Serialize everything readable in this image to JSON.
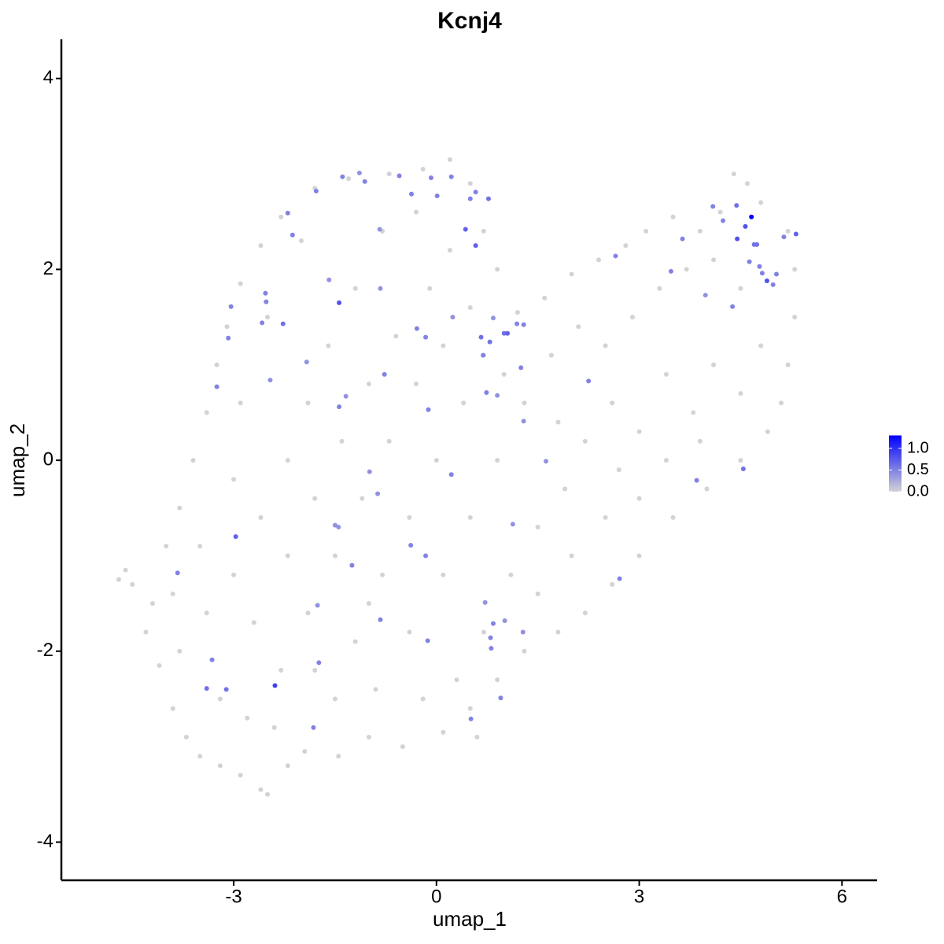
{
  "chart_data": {
    "type": "scatter",
    "title": "Kcnj4",
    "x_label": "umap_1",
    "y_label": "umap_2",
    "xlim": [
      -5.55,
      6.52
    ],
    "ylim": [
      -4.4,
      4.41
    ],
    "xticks": [
      -3,
      0,
      3,
      6
    ],
    "yticks": [
      -4,
      -2,
      0,
      2,
      4
    ],
    "low_color": "#d3d3d3",
    "high_color": "#0000ff",
    "colorbar_lim": [
      0,
      1.3
    ],
    "colorbar_ticks": [
      {
        "value": 0,
        "label": "0.0"
      },
      {
        "value": 0.5,
        "label": "0.5"
      },
      {
        "value": 1,
        "label": "1.0"
      }
    ],
    "x": [
      -4.7,
      -4.5,
      -4.6,
      -4.3,
      -4.1,
      -3.9,
      -3.7,
      -3.5,
      -3.2,
      -2.9,
      -2.6,
      -2.5,
      -2.2,
      -1.95,
      -1.45,
      -1.0,
      -0.5,
      0.1,
      0.5,
      0.9,
      1.3,
      1.8,
      2.2,
      2.6,
      3.0,
      3.5,
      4.0,
      4.5,
      4.9,
      5.1,
      5.2,
      5.3,
      5.3,
      5.2,
      4.8,
      4.6,
      4.4,
      4.2,
      3.9,
      3.5,
      3.1,
      2.8,
      2.4,
      2.0,
      1.6,
      1.2,
      0.9,
      0.7,
      0.5,
      0.2,
      -0.2,
      -0.7,
      -1.3,
      -1.8,
      -2.3,
      -2.6,
      -2.9,
      -3.1,
      -3.25,
      -3.4,
      -3.6,
      -3.8,
      -4.0,
      -4.2,
      -3.8,
      -3.4,
      -3.0,
      -2.6,
      -2.2,
      -1.9,
      -1.6,
      -1.2,
      -0.8,
      -0.3,
      0.2,
      0.5,
      -0.1,
      -0.6,
      -1.0,
      -1.4,
      -1.8,
      -2.2,
      -2.7,
      -3.2,
      -2.8,
      -2.3,
      -1.9,
      -1.5,
      -1.1,
      -0.7,
      -0.3,
      0.1,
      0.4,
      0.0,
      -0.4,
      -0.8,
      -1.2,
      -1.5,
      -0.9,
      -0.4,
      0.1,
      0.5,
      0.9,
      1.3,
      1.7,
      2.1,
      2.5,
      2.9,
      3.3,
      3.7,
      4.1,
      4.5,
      4.8,
      4.5,
      4.1,
      3.8,
      3.4,
      3.0,
      2.6,
      2.2,
      1.9,
      1.5,
      1.1,
      0.7,
      0.3,
      1.5,
      2.0,
      2.5,
      3.0,
      3.4,
      3.9,
      2.7,
      1.8,
      1.0,
      0.7,
      -2.0,
      -2.5,
      -2.9,
      -3.0,
      -3.5,
      -3.9,
      -2.4,
      -1.8,
      -1.0,
      -0.2,
      0.6,
      -3.04,
      -3.08,
      -3.25,
      -2.97,
      -3.83,
      -3.32,
      -3.4,
      -3.11,
      -2.39,
      -2.53,
      -2.52,
      -2.58,
      -2.27,
      -2.2,
      -2.13,
      -2.46,
      -1.92,
      -1.78,
      -1.59,
      -1.44,
      -1.39,
      -1.14,
      -1.06,
      -0.55,
      -0.37,
      -0.08,
      0.22,
      0.01,
      0.5,
      0.58,
      0.77,
      0.43,
      0.58,
      -0.84,
      -0.83,
      -0.29,
      -0.16,
      0.24,
      0.66,
      0.79,
      0.84,
      1.0,
      1.05,
      1.19,
      1.29,
      0.69,
      1.25,
      0.74,
      0.9,
      1.29,
      -1.34,
      -1.44,
      -0.77,
      -0.12,
      -0.99,
      -0.87,
      0.22,
      1.62,
      -1.5,
      -1.45,
      -1.25,
      -0.38,
      -0.16,
      1.13,
      -1.76,
      -0.83,
      -1.74,
      -1.82,
      -0.13,
      0.72,
      0.84,
      0.8,
      0.81,
      1.01,
      1.28,
      0.95,
      0.51,
      2.71,
      2.25,
      2.65,
      3.47,
      3.64,
      3.85,
      3.98,
      4.09,
      4.24,
      4.38,
      4.44,
      4.45,
      4.54,
      4.57,
      4.63,
      4.7,
      4.74,
      4.78,
      4.82,
      4.89,
      4.98,
      5.03,
      5.14,
      5.32,
      4.66
    ],
    "y": [
      -1.25,
      -1.3,
      -1.15,
      -1.8,
      -2.15,
      -2.6,
      -2.9,
      -3.1,
      -3.2,
      -3.3,
      -3.45,
      -3.5,
      -3.2,
      -3.05,
      -3.1,
      -2.9,
      -3.0,
      -2.85,
      -2.6,
      -2.3,
      -2.0,
      -1.8,
      -1.6,
      -1.3,
      -1.0,
      -0.6,
      -0.3,
      0.0,
      0.3,
      0.6,
      1.0,
      1.5,
      2.0,
      2.4,
      2.7,
      2.9,
      3.0,
      2.6,
      2.4,
      2.55,
      2.4,
      2.25,
      2.1,
      1.95,
      1.7,
      1.55,
      2.0,
      2.4,
      2.9,
      3.15,
      3.05,
      3.0,
      2.95,
      2.85,
      2.55,
      2.25,
      1.85,
      1.4,
      1.0,
      0.5,
      0.0,
      -0.5,
      -0.9,
      -1.5,
      -2.0,
      -1.6,
      -1.2,
      -0.6,
      0.0,
      0.6,
      1.2,
      1.8,
      2.4,
      2.6,
      2.2,
      1.6,
      1.8,
      1.3,
      0.8,
      0.2,
      -0.4,
      -1.0,
      -1.7,
      -2.5,
      -2.7,
      -2.2,
      -1.6,
      -1.0,
      -0.4,
      0.2,
      0.8,
      1.2,
      0.6,
      0.0,
      -0.6,
      -1.2,
      -1.9,
      -2.5,
      -2.4,
      -1.8,
      -1.2,
      -0.6,
      0.0,
      0.6,
      1.1,
      1.4,
      1.2,
      1.5,
      1.8,
      2.0,
      2.1,
      1.8,
      1.2,
      0.7,
      1.0,
      0.5,
      0.9,
      0.3,
      0.6,
      0.2,
      -0.3,
      -0.7,
      -1.2,
      -1.8,
      -2.3,
      -1.4,
      -1.0,
      -0.6,
      -0.4,
      0.0,
      0.2,
      -0.1,
      0.4,
      0.9,
      1.1,
      2.3,
      1.5,
      0.6,
      -0.2,
      -0.9,
      -1.4,
      -2.8,
      -2.2,
      -1.5,
      -2.5,
      -2.9,
      1.61,
      1.28,
      0.77,
      -0.8,
      -1.18,
      -2.09,
      -2.39,
      -2.4,
      -2.36,
      1.75,
      1.66,
      1.44,
      1.43,
      2.59,
      2.36,
      0.84,
      1.03,
      2.82,
      1.89,
      1.65,
      2.97,
      3.01,
      2.92,
      2.98,
      2.79,
      2.96,
      2.97,
      2.77,
      2.74,
      2.81,
      2.74,
      2.42,
      2.25,
      2.42,
      1.8,
      1.38,
      1.29,
      1.5,
      1.29,
      1.24,
      1.49,
      1.33,
      1.33,
      1.43,
      1.42,
      1.1,
      0.97,
      0.71,
      0.68,
      0.41,
      0.67,
      0.56,
      0.9,
      0.53,
      -0.12,
      -0.35,
      -0.15,
      -0.01,
      -0.68,
      -0.7,
      -1.1,
      -0.89,
      -1.0,
      -0.67,
      -1.52,
      -1.67,
      -2.12,
      -2.8,
      -1.89,
      -1.49,
      -1.71,
      -1.86,
      -1.97,
      -1.68,
      -1.8,
      -2.49,
      -2.71,
      -1.24,
      0.83,
      2.14,
      1.98,
      2.32,
      -0.21,
      1.73,
      2.66,
      2.51,
      1.61,
      2.67,
      2.32,
      -0.09,
      2.45,
      2.08,
      2.26,
      2.26,
      2.03,
      1.96,
      1.88,
      1.84,
      1.95,
      2.34,
      2.37,
      2.55
    ],
    "values": [
      0,
      0,
      0,
      0,
      0,
      0,
      0,
      0,
      0,
      0,
      0,
      0,
      0,
      0,
      0,
      0,
      0,
      0,
      0,
      0,
      0,
      0,
      0,
      0,
      0,
      0,
      0,
      0,
      0,
      0,
      0,
      0,
      0,
      0,
      0,
      0,
      0,
      0,
      0,
      0,
      0,
      0,
      0,
      0,
      0,
      0,
      0,
      0,
      0,
      0,
      0,
      0,
      0,
      0,
      0,
      0,
      0,
      0,
      0,
      0,
      0,
      0,
      0,
      0,
      0,
      0,
      0,
      0,
      0,
      0,
      0,
      0,
      0,
      0,
      0,
      0,
      0,
      0,
      0,
      0,
      0,
      0,
      0,
      0,
      0,
      0,
      0,
      0,
      0,
      0,
      0,
      0,
      0,
      0,
      0,
      0,
      0,
      0,
      0,
      0,
      0,
      0,
      0,
      0,
      0,
      0,
      0,
      0,
      0,
      0,
      0,
      0,
      0,
      0,
      0,
      0,
      0,
      0,
      0,
      0,
      0,
      0,
      0,
      0,
      0,
      0,
      0,
      0,
      0,
      0,
      0,
      0,
      0,
      0,
      0,
      0,
      0,
      0,
      0,
      0,
      0,
      0,
      0,
      0,
      0,
      0,
      0.5,
      0.5,
      0.5,
      0.7,
      0.5,
      0.5,
      0.6,
      0.6,
      0.9,
      0.5,
      0.5,
      0.5,
      0.6,
      0.5,
      0.5,
      0.4,
      0.4,
      0.5,
      0.4,
      0.8,
      0.5,
      0.4,
      0.5,
      0.5,
      0.5,
      0.5,
      0.5,
      0.5,
      0.5,
      0.5,
      0.6,
      0.7,
      0.7,
      0.4,
      0.4,
      0.5,
      0.5,
      0.4,
      0.6,
      0.6,
      0.4,
      0.6,
      0.7,
      0.5,
      0.5,
      0.5,
      0.5,
      0.5,
      0.4,
      0.4,
      0.4,
      0.5,
      0.5,
      0.5,
      0.4,
      0.4,
      0.5,
      0.4,
      0.4,
      0.4,
      0.5,
      0.5,
      0.5,
      0.4,
      0.4,
      0.5,
      0.5,
      0.5,
      0.5,
      0.4,
      0.5,
      0.5,
      0.5,
      0.4,
      0.4,
      0.5,
      0.5,
      0.5,
      0.5,
      0.5,
      0.5,
      0.5,
      0.5,
      0.4,
      0.5,
      0.5,
      0.5,
      0.6,
      0.8,
      0.6,
      0.8,
      0.5,
      0.6,
      0.6,
      0.5,
      0.5,
      0.8,
      0.5,
      0.5,
      0.5,
      0.7,
      1.3
    ]
  }
}
